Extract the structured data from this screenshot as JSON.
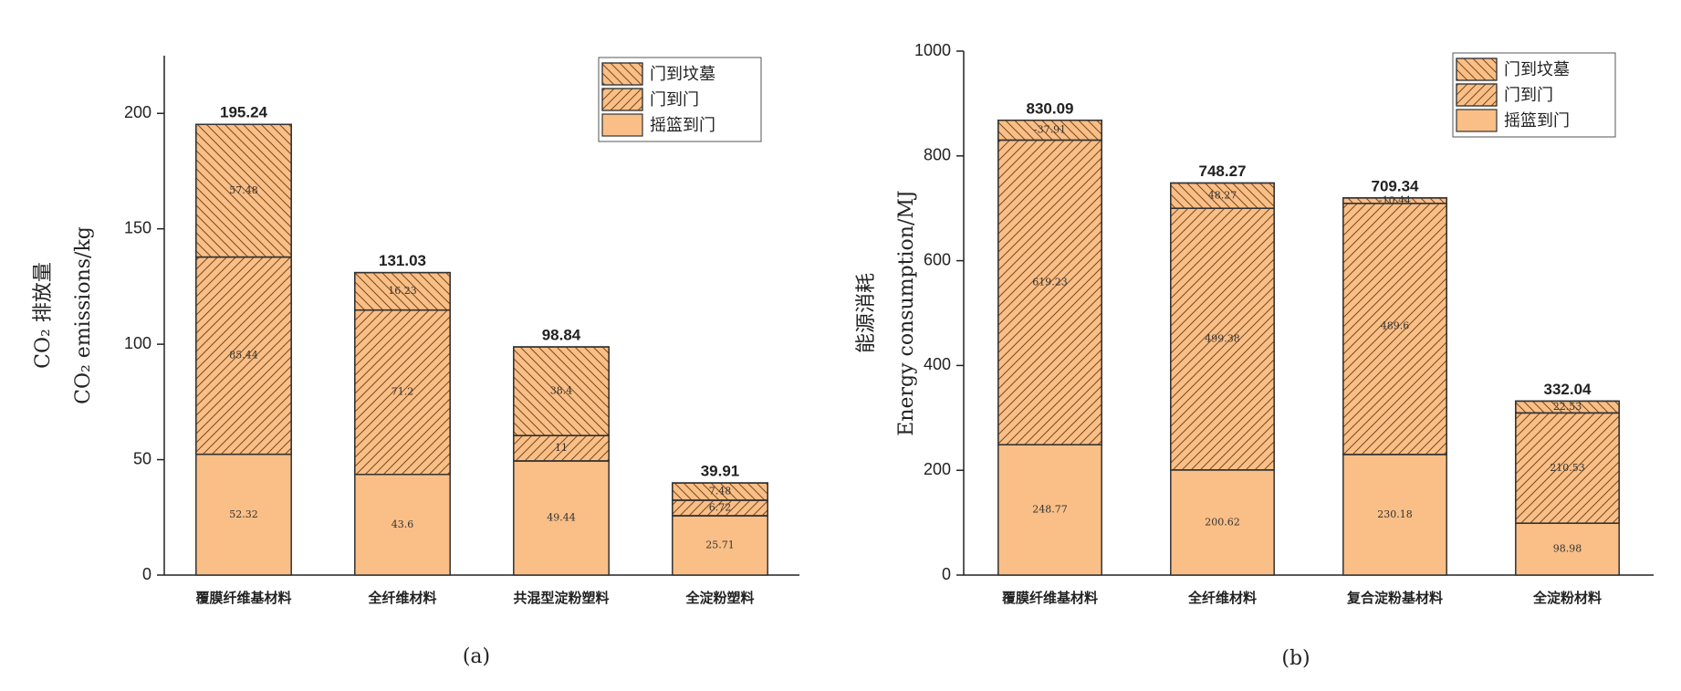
{
  "chart_data": [
    {
      "type": "bar",
      "stacked": true,
      "caption": "(a)",
      "ylabel": [
        "CO₂ 排放量",
        "CO₂ emissions/kg"
      ],
      "categories": [
        "覆膜纤维基材料",
        "全纤维材料",
        "共混型淀粉塑料",
        "全淀粉塑料"
      ],
      "series": [
        {
          "name": "摇篮到门",
          "color": "#f9bf87",
          "values": [
            52.32,
            43.6,
            49.44,
            25.71
          ]
        },
        {
          "name": "门到门",
          "color": "#f9bf87",
          "hatch": "slash",
          "values": [
            85.44,
            71.2,
            11,
            6.72
          ]
        },
        {
          "name": "门到坟墓",
          "color": "#f9bf87",
          "hatch": "backslash",
          "values": [
            57.48,
            16.23,
            38.4,
            7.48
          ]
        }
      ],
      "totals": [
        195.24,
        131.03,
        98.84,
        39.91
      ],
      "ylim": [
        0,
        225
      ],
      "yticks": [
        0,
        50,
        100,
        150,
        200
      ],
      "legend": "upper right"
    },
    {
      "type": "bar",
      "stacked": true,
      "caption": "(b)",
      "ylabel": [
        "能源消耗",
        "Energy consumption/MJ"
      ],
      "categories": [
        "覆膜纤维基材料",
        "全纤维材料",
        "复合淀粉基材料",
        "全淀粉材料"
      ],
      "series": [
        {
          "name": "摇篮到门",
          "color": "#f9bf87",
          "values": [
            248.77,
            200.62,
            230.18,
            98.98
          ]
        },
        {
          "name": "门到门",
          "color": "#f9bf87",
          "hatch": "slash",
          "values": [
            619.23,
            499.38,
            489.6,
            210.53
          ]
        },
        {
          "name": "门到坟墓",
          "color": "#f9bf87",
          "hatch": "backslash",
          "values": [
            -37.91,
            48.27,
            -10.44,
            22.53
          ]
        }
      ],
      "totals": [
        830.09,
        748.27,
        709.34,
        332.04
      ],
      "ylim": [
        0,
        1000
      ],
      "yticks": [
        0,
        200,
        400,
        600,
        800,
        1000
      ],
      "legend": "upper right"
    }
  ]
}
